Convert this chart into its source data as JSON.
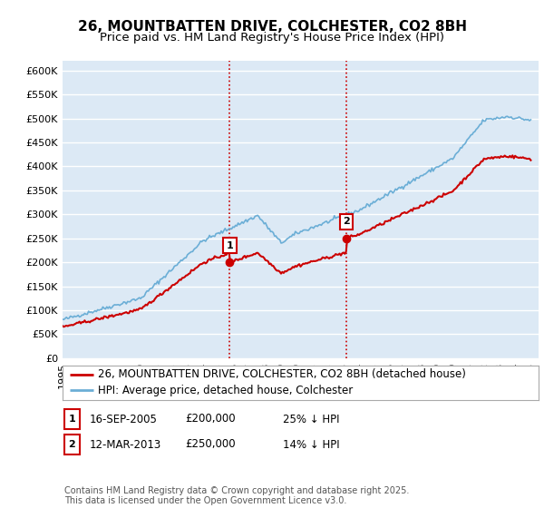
{
  "title": "26, MOUNTBATTEN DRIVE, COLCHESTER, CO2 8BH",
  "subtitle": "Price paid vs. HM Land Registry's House Price Index (HPI)",
  "ylim": [
    0,
    620000
  ],
  "yticks": [
    0,
    50000,
    100000,
    150000,
    200000,
    250000,
    300000,
    350000,
    400000,
    450000,
    500000,
    550000,
    600000
  ],
  "background_color": "#ffffff",
  "plot_bg_color": "#dce9f5",
  "grid_color": "#ffffff",
  "hpi_color": "#6baed6",
  "price_color": "#cc0000",
  "vline_color": "#cc0000",
  "vline_style": ":",
  "marker1_date": 2005.71,
  "marker1_price": 200000,
  "marker2_date": 2013.19,
  "marker2_price": 250000,
  "legend_label1": "26, MOUNTBATTEN DRIVE, COLCHESTER, CO2 8BH (detached house)",
  "legend_label2": "HPI: Average price, detached house, Colchester",
  "annotation1_label": "1",
  "annotation2_label": "2",
  "table_row1": [
    "1",
    "16-SEP-2005",
    "£200,000",
    "25% ↓ HPI"
  ],
  "table_row2": [
    "2",
    "12-MAR-2013",
    "£250,000",
    "14% ↓ HPI"
  ],
  "footer": "Contains HM Land Registry data © Crown copyright and database right 2025.\nThis data is licensed under the Open Government Licence v3.0.",
  "title_fontsize": 11,
  "subtitle_fontsize": 9.5,
  "tick_fontsize": 8,
  "legend_fontsize": 8.5,
  "footer_fontsize": 7
}
